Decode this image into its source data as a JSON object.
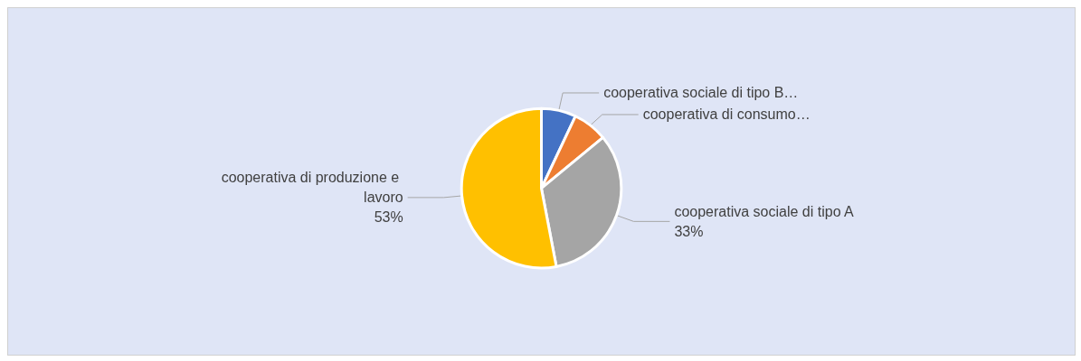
{
  "chart_data": {
    "type": "pie",
    "categories": [
      "cooperativa sociale di tipo B…",
      "cooperativa di consumo…",
      "cooperativa sociale di tipo A",
      "cooperativa di produzione e lavoro"
    ],
    "values": [
      7,
      7,
      33,
      53
    ],
    "value_labels": [
      null,
      null,
      "33%",
      "53%"
    ],
    "colors": [
      "#4472c4",
      "#ed7d31",
      "#a5a5a5",
      "#ffc000"
    ],
    "legend": false
  }
}
